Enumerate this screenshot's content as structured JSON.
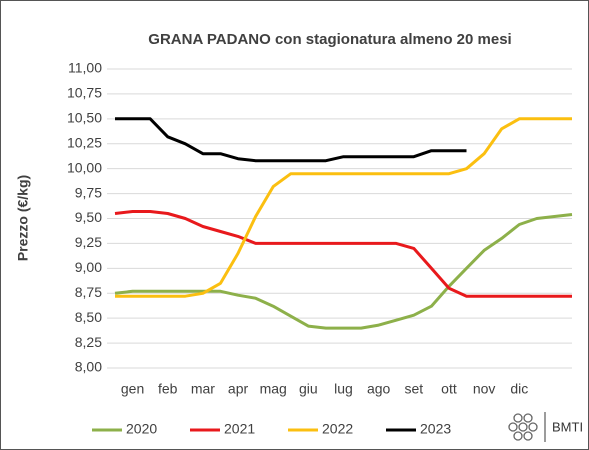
{
  "chart_data": {
    "type": "line",
    "title": "GRANA PADANO con stagionatura almeno 20 mesi",
    "y_label": "Prezzo (€/kg)",
    "logo_text": "BMTI",
    "categories": [
      null,
      "gen",
      null,
      "feb",
      null,
      "mar",
      null,
      "apr",
      null,
      "mag",
      null,
      "giu",
      null,
      "lug",
      null,
      "ago",
      null,
      "set",
      null,
      "ott",
      null,
      "nov",
      null,
      "dic",
      null,
      null,
      null
    ],
    "series": [
      {
        "name": "2020",
        "color": "#8db04a",
        "values": [
          8.75,
          8.77,
          8.77,
          8.77,
          8.77,
          8.77,
          8.77,
          8.73,
          8.7,
          8.62,
          8.52,
          8.42,
          8.4,
          8.4,
          8.4,
          8.43,
          8.48,
          8.53,
          8.62,
          8.82,
          9.0,
          9.18,
          9.3,
          9.44,
          9.5,
          9.52,
          9.54
        ]
      },
      {
        "name": "2021",
        "color": "#e8191c",
        "values": [
          9.55,
          9.57,
          9.57,
          9.55,
          9.5,
          9.42,
          9.37,
          9.32,
          9.25,
          9.25,
          9.25,
          9.25,
          9.25,
          9.25,
          9.25,
          9.25,
          9.25,
          9.2,
          9.0,
          8.8,
          8.72,
          8.72,
          8.72,
          8.72,
          8.72,
          8.72,
          8.72
        ]
      },
      {
        "name": "2022",
        "color": "#fbbf10",
        "values": [
          8.72,
          8.72,
          8.72,
          8.72,
          8.72,
          8.75,
          8.85,
          9.15,
          9.52,
          9.82,
          9.95,
          9.95,
          9.95,
          9.95,
          9.95,
          9.95,
          9.95,
          9.95,
          9.95,
          9.95,
          10.0,
          10.15,
          10.4,
          10.5,
          10.5,
          10.5,
          10.5
        ]
      },
      {
        "name": "2023",
        "color": "#000000",
        "values": [
          10.5,
          10.5,
          10.5,
          10.32,
          10.25,
          10.15,
          10.15,
          10.1,
          10.08,
          10.08,
          10.08,
          10.08,
          10.08,
          10.12,
          10.12,
          10.12,
          10.12,
          10.12,
          10.18,
          10.18,
          10.18,
          null,
          null,
          null,
          null,
          null,
          null
        ]
      }
    ],
    "ylim": [
      8,
      11
    ],
    "yticks": [
      {
        "value": 8,
        "label": "8,00"
      },
      {
        "value": 8.25,
        "label": "8,25"
      },
      {
        "value": 8.5,
        "label": "8,50"
      },
      {
        "value": 8.75,
        "label": "8,75"
      },
      {
        "value": 9,
        "label": "9,00"
      },
      {
        "value": 9.25,
        "label": "9,25"
      },
      {
        "value": 9.5,
        "label": "9,50"
      },
      {
        "value": 9.75,
        "label": "9,75"
      },
      {
        "value": 10,
        "label": "10,00"
      },
      {
        "value": 10.25,
        "label": "10,25"
      },
      {
        "value": 10.5,
        "label": "10,50"
      },
      {
        "value": 10.75,
        "label": "10,75"
      },
      {
        "value": 11,
        "label": "11,00"
      }
    ],
    "grid": true,
    "legend": "bottom"
  }
}
